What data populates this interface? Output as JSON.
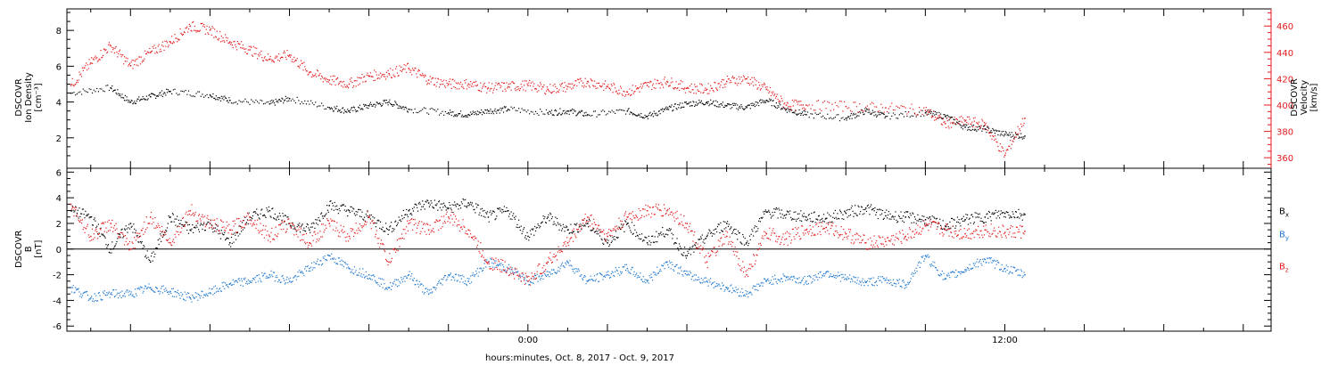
{
  "x_axis": {
    "label": "hours:minutes, Oct.  8, 2017 - Oct.  9, 2017",
    "tick_labels": [
      {
        "t": 0,
        "label": "0:00"
      },
      {
        "t": 12,
        "label": "12:00"
      }
    ]
  },
  "chart_data": [
    {
      "type": "scatter",
      "title": "",
      "xlim": [
        -11.6,
        18.7
      ],
      "ylim_left": [
        0.3,
        9.2
      ],
      "ylim_right": [
        352,
        473
      ],
      "ylabel_left": [
        "DSCOVR",
        "Ion Density",
        "[cm⁻³]"
      ],
      "ylabel_right": [
        "DSCOVR",
        "Velocity",
        "[km/s]"
      ],
      "yticks_left": [
        2,
        4,
        6,
        8
      ],
      "yticks_right": [
        360,
        380,
        400,
        420,
        440,
        460
      ],
      "series": [
        {
          "key": "density",
          "color": "#000000",
          "axis": "left",
          "points": [
            [
              -11.5,
              4.5
            ],
            [
              -10.5,
              4.8
            ],
            [
              -10.0,
              4.0
            ],
            [
              -9.5,
              4.3
            ],
            [
              -9.0,
              4.6
            ],
            [
              -8.0,
              4.4
            ],
            [
              -7.5,
              4.1
            ],
            [
              -6.5,
              3.9
            ],
            [
              -6.0,
              4.2
            ],
            [
              -5.0,
              3.7
            ],
            [
              -4.5,
              3.5
            ],
            [
              -4.0,
              3.8
            ],
            [
              -3.5,
              4.0
            ],
            [
              -3.0,
              3.6
            ],
            [
              -2.0,
              3.4
            ],
            [
              -1.5,
              3.3
            ],
            [
              -1.0,
              3.5
            ],
            [
              -0.5,
              3.6
            ],
            [
              0.5,
              3.4
            ],
            [
              1.0,
              3.5
            ],
            [
              1.5,
              3.3
            ],
            [
              2.5,
              3.5
            ],
            [
              3.0,
              3.2
            ],
            [
              3.5,
              3.6
            ],
            [
              4.0,
              3.9
            ],
            [
              4.5,
              4.0
            ],
            [
              5.0,
              3.8
            ],
            [
              5.5,
              3.7
            ],
            [
              6.0,
              4.1
            ],
            [
              6.5,
              3.6
            ],
            [
              7.0,
              3.3
            ],
            [
              8.0,
              3.1
            ],
            [
              8.5,
              3.5
            ],
            [
              9.0,
              3.2
            ],
            [
              10.0,
              3.4
            ],
            [
              10.5,
              3.2
            ],
            [
              11.0,
              2.6
            ],
            [
              11.5,
              2.5
            ],
            [
              12.0,
              2.2
            ],
            [
              12.5,
              2.1
            ]
          ]
        },
        {
          "key": "velocity",
          "color": "#e41a1c",
          "axis": "right",
          "points": [
            [
              -11.5,
              415
            ],
            [
              -11.0,
              432
            ],
            [
              -10.5,
              445
            ],
            [
              -10.0,
              430
            ],
            [
              -9.5,
              440
            ],
            [
              -9.0,
              448
            ],
            [
              -8.5,
              460
            ],
            [
              -8.0,
              457
            ],
            [
              -7.5,
              448
            ],
            [
              -7.0,
              442
            ],
            [
              -6.5,
              435
            ],
            [
              -6.0,
              438
            ],
            [
              -5.5,
              425
            ],
            [
              -5.0,
              419
            ],
            [
              -4.5,
              416
            ],
            [
              -4.0,
              422
            ],
            [
              -3.5,
              424
            ],
            [
              -3.0,
              428
            ],
            [
              -2.5,
              419
            ],
            [
              -2.0,
              416
            ],
            [
              -1.5,
              416
            ],
            [
              -1.0,
              413
            ],
            [
              -0.5,
              414
            ],
            [
              0.0,
              415
            ],
            [
              0.5,
              412
            ],
            [
              1.0,
              414
            ],
            [
              1.5,
              418
            ],
            [
              2.0,
              414
            ],
            [
              2.5,
              410
            ],
            [
              3.0,
              415
            ],
            [
              3.5,
              418
            ],
            [
              4.0,
              413
            ],
            [
              4.5,
              412
            ],
            [
              5.0,
              418
            ],
            [
              5.5,
              420
            ],
            [
              6.0,
              412
            ],
            [
              6.5,
              400
            ],
            [
              7.0,
              400
            ],
            [
              8.0,
              399
            ],
            [
              9.0,
              398
            ],
            [
              10.0,
              396
            ],
            [
              10.5,
              386
            ],
            [
              11.0,
              388
            ],
            [
              11.5,
              385
            ],
            [
              12.0,
              362
            ],
            [
              12.5,
              390
            ]
          ]
        }
      ]
    },
    {
      "type": "scatter",
      "title": "",
      "xlim": [
        -11.6,
        18.7
      ],
      "ylim": [
        -6.4,
        6.3
      ],
      "ylabel": [
        "DSCOVR",
        "B",
        "[nT]"
      ],
      "yticks": [
        -6,
        -4,
        -2,
        0,
        2,
        4,
        6
      ],
      "zero_line": true,
      "legend": {
        "placement": "right",
        "items": [
          {
            "name": "B",
            "sub": "x",
            "color": "#000000"
          },
          {
            "name": "B",
            "sub": "y",
            "color": "#1f78d0"
          },
          {
            "name": "B",
            "sub": "z",
            "color": "#e41a1c"
          }
        ]
      },
      "series": [
        {
          "key": "Bx",
          "color": "#000000",
          "points": [
            [
              -11.5,
              3.0
            ],
            [
              -11.0,
              2.5
            ],
            [
              -10.5,
              0.0
            ],
            [
              -10.0,
              2.0
            ],
            [
              -9.5,
              -1.0
            ],
            [
              -9.0,
              2.5
            ],
            [
              -8.5,
              1.5
            ],
            [
              -8.0,
              2.0
            ],
            [
              -7.5,
              0.5
            ],
            [
              -7.0,
              2.5
            ],
            [
              -6.5,
              3.0
            ],
            [
              -6.0,
              2.0
            ],
            [
              -5.5,
              1.5
            ],
            [
              -5.0,
              3.4
            ],
            [
              -4.5,
              3.0
            ],
            [
              -4.0,
              2.5
            ],
            [
              -3.5,
              1.5
            ],
            [
              -3.0,
              3.0
            ],
            [
              -2.5,
              3.6
            ],
            [
              -2.0,
              3.2
            ],
            [
              -1.5,
              3.6
            ],
            [
              -1.0,
              2.5
            ],
            [
              -0.5,
              3.0
            ],
            [
              0.0,
              1.0
            ],
            [
              0.5,
              2.5
            ],
            [
              1.0,
              1.5
            ],
            [
              1.5,
              2.0
            ],
            [
              2.0,
              0.5
            ],
            [
              2.5,
              2.0
            ],
            [
              3.0,
              0.5
            ],
            [
              3.5,
              1.5
            ],
            [
              4.0,
              -0.5
            ],
            [
              4.5,
              1.0
            ],
            [
              5.0,
              2.0
            ],
            [
              5.5,
              0.5
            ],
            [
              6.0,
              2.9
            ],
            [
              6.5,
              2.7
            ],
            [
              7.0,
              2.5
            ],
            [
              7.5,
              2.4
            ],
            [
              8.0,
              2.8
            ],
            [
              8.5,
              3.2
            ],
            [
              9.0,
              2.6
            ],
            [
              9.5,
              2.5
            ],
            [
              10.0,
              2.3
            ],
            [
              10.5,
              1.8
            ],
            [
              11.0,
              2.3
            ],
            [
              11.5,
              2.5
            ],
            [
              12.0,
              2.8
            ],
            [
              12.5,
              2.7
            ]
          ]
        },
        {
          "key": "By",
          "color": "#1f78d0",
          "points": [
            [
              -11.5,
              -3.0
            ],
            [
              -11.0,
              -3.8
            ],
            [
              -10.5,
              -3.5
            ],
            [
              -10.0,
              -3.5
            ],
            [
              -9.5,
              -3.0
            ],
            [
              -9.0,
              -3.3
            ],
            [
              -8.5,
              -3.8
            ],
            [
              -8.0,
              -3.4
            ],
            [
              -7.5,
              -2.7
            ],
            [
              -7.0,
              -2.5
            ],
            [
              -6.5,
              -2.0
            ],
            [
              -6.0,
              -2.5
            ],
            [
              -5.5,
              -1.5
            ],
            [
              -5.0,
              -0.5
            ],
            [
              -4.5,
              -1.5
            ],
            [
              -4.0,
              -2.0
            ],
            [
              -3.5,
              -3.0
            ],
            [
              -3.0,
              -2.0
            ],
            [
              -2.5,
              -3.5
            ],
            [
              -2.0,
              -2.0
            ],
            [
              -1.5,
              -2.5
            ],
            [
              -1.0,
              -1.0
            ],
            [
              -0.5,
              -1.5
            ],
            [
              0.0,
              -2.5
            ],
            [
              0.5,
              -2.0
            ],
            [
              1.0,
              -1.0
            ],
            [
              1.5,
              -2.5
            ],
            [
              2.0,
              -2.0
            ],
            [
              2.5,
              -1.5
            ],
            [
              3.0,
              -2.5
            ],
            [
              3.5,
              -1.0
            ],
            [
              4.0,
              -2.0
            ],
            [
              4.5,
              -2.5
            ],
            [
              5.0,
              -3.0
            ],
            [
              5.5,
              -3.5
            ],
            [
              6.0,
              -2.5
            ],
            [
              6.5,
              -2.2
            ],
            [
              7.0,
              -2.5
            ],
            [
              7.5,
              -1.8
            ],
            [
              8.0,
              -2.3
            ],
            [
              8.5,
              -2.6
            ],
            [
              9.0,
              -2.4
            ],
            [
              9.5,
              -2.8
            ],
            [
              10.0,
              -0.5
            ],
            [
              10.5,
              -2.3
            ],
            [
              11.0,
              -1.6
            ],
            [
              11.5,
              -0.8
            ],
            [
              12.0,
              -1.5
            ],
            [
              12.5,
              -2.0
            ]
          ]
        },
        {
          "key": "Bz",
          "color": "#e41a1c",
          "points": [
            [
              -11.5,
              3.5
            ],
            [
              -11.0,
              1.0
            ],
            [
              -10.5,
              2.0
            ],
            [
              -10.0,
              0.0
            ],
            [
              -9.5,
              2.5
            ],
            [
              -9.0,
              0.5
            ],
            [
              -8.5,
              3.0
            ],
            [
              -8.0,
              2.0
            ],
            [
              -7.5,
              1.5
            ],
            [
              -7.0,
              2.5
            ],
            [
              -6.5,
              1.0
            ],
            [
              -6.0,
              2.0
            ],
            [
              -5.5,
              0.5
            ],
            [
              -5.0,
              2.0
            ],
            [
              -4.5,
              1.0
            ],
            [
              -4.0,
              2.5
            ],
            [
              -3.5,
              -1.0
            ],
            [
              -3.0,
              2.0
            ],
            [
              -2.5,
              1.5
            ],
            [
              -2.0,
              2.5
            ],
            [
              -1.5,
              1.5
            ],
            [
              -1.0,
              -1.0
            ],
            [
              -0.5,
              -1.5
            ],
            [
              0.0,
              -2.5
            ],
            [
              0.5,
              -1.0
            ],
            [
              1.0,
              0.5
            ],
            [
              1.5,
              2.5
            ],
            [
              2.0,
              1.0
            ],
            [
              2.5,
              2.5
            ],
            [
              3.0,
              3.0
            ],
            [
              3.5,
              3.0
            ],
            [
              4.0,
              2.0
            ],
            [
              4.5,
              -1.0
            ],
            [
              5.0,
              1.0
            ],
            [
              5.5,
              -2.0
            ],
            [
              6.0,
              1.2
            ],
            [
              6.5,
              0.8
            ],
            [
              7.0,
              1.5
            ],
            [
              7.5,
              1.7
            ],
            [
              8.0,
              1.2
            ],
            [
              8.5,
              0.5
            ],
            [
              9.0,
              0.6
            ],
            [
              9.5,
              1.0
            ],
            [
              10.0,
              1.8
            ],
            [
              10.5,
              1.5
            ],
            [
              11.0,
              1.2
            ],
            [
              11.5,
              1.5
            ],
            [
              12.0,
              1.3
            ],
            [
              12.5,
              1.4
            ]
          ]
        }
      ]
    }
  ]
}
